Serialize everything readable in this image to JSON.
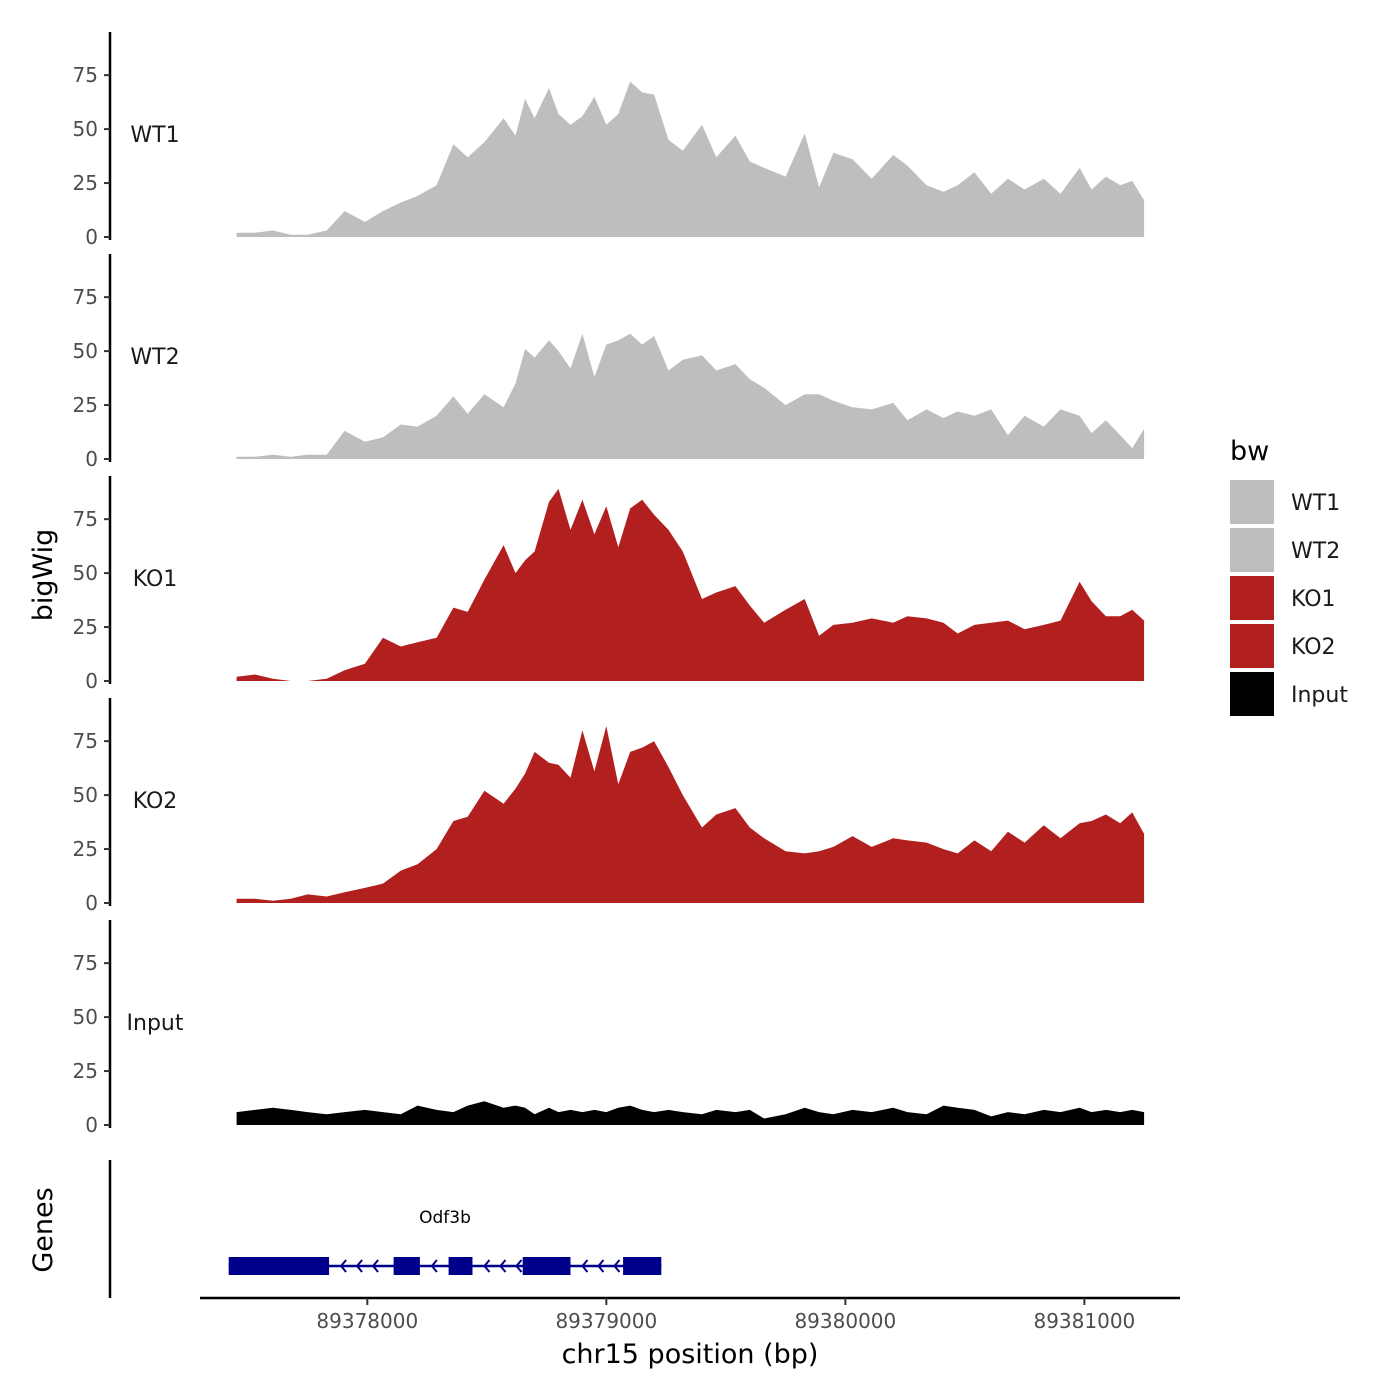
{
  "chart_data": {
    "type": "area",
    "chromosome": "chr15",
    "xlabel": "chr15 position (bp)",
    "ylabel": "bigWig",
    "genes_label": "Genes",
    "xlim": [
      89377300,
      89381400
    ],
    "x_ticks": [
      89378000,
      89379000,
      89380000,
      89381000
    ],
    "x_tick_labels": [
      "89378000",
      "89379000",
      "89380000",
      "89381000"
    ],
    "ylim": [
      0,
      95
    ],
    "y_ticks": [
      0,
      25,
      50,
      75
    ],
    "y_tick_labels": [
      "0",
      "25",
      "50",
      "75"
    ],
    "grid": false,
    "legend": {
      "title": "bw",
      "position": "right",
      "entries": [
        {
          "label": "WT1",
          "color": "#bebebe"
        },
        {
          "label": "WT2",
          "color": "#bebebe"
        },
        {
          "label": "KO1",
          "color": "#b21f1f"
        },
        {
          "label": "KO2",
          "color": "#b21f1f"
        },
        {
          "label": "Input",
          "color": "#000000"
        }
      ]
    },
    "x": [
      89377453,
      89377530,
      89377605,
      89377680,
      89377750,
      89377830,
      89377905,
      89377990,
      89378065,
      89378140,
      89378210,
      89378290,
      89378360,
      89378420,
      89378490,
      89378570,
      89378620,
      89378660,
      89378700,
      89378760,
      89378800,
      89378850,
      89378900,
      89378950,
      89379000,
      89379050,
      89379100,
      89379150,
      89379200,
      89379260,
      89379320,
      89379400,
      89379460,
      89379540,
      89379600,
      89379660,
      89379750,
      89379830,
      89379890,
      89379950,
      89380030,
      89380110,
      89380200,
      89380260,
      89380340,
      89380410,
      89380470,
      89380540,
      89380610,
      89380680,
      89380750,
      89380830,
      89380900,
      89380980,
      89381030,
      89381090,
      89381150,
      89381200,
      89381250
    ],
    "series": [
      {
        "name": "WT1",
        "color": "#bebebe",
        "values": [
          2,
          2,
          3,
          1,
          1,
          3,
          12,
          7,
          12,
          16,
          19,
          24,
          43,
          37,
          44,
          55,
          47,
          64,
          55,
          69,
          57,
          52,
          56,
          65,
          52,
          57,
          72,
          67,
          66,
          45,
          40,
          52,
          37,
          47,
          35,
          32,
          28,
          48,
          23,
          39,
          36,
          27,
          38,
          33,
          24,
          21,
          24,
          30,
          20,
          27,
          22,
          27,
          20,
          32,
          22,
          28,
          24,
          26,
          17
        ]
      },
      {
        "name": "WT2",
        "color": "#bebebe",
        "values": [
          1,
          1,
          2,
          1,
          2,
          2,
          13,
          8,
          10,
          16,
          15,
          20,
          29,
          21,
          30,
          24,
          35,
          51,
          47,
          55,
          50,
          42,
          58,
          38,
          53,
          55,
          58,
          53,
          57,
          41,
          46,
          48,
          41,
          44,
          37,
          33,
          25,
          30,
          30,
          27,
          24,
          23,
          26,
          18,
          23,
          19,
          22,
          20,
          23,
          11,
          20,
          15,
          23,
          20,
          12,
          18,
          11,
          5,
          14
        ]
      },
      {
        "name": "KO1",
        "color": "#b21f1f",
        "values": [
          2,
          3,
          1,
          0,
          0,
          1,
          5,
          8,
          20,
          16,
          18,
          20,
          34,
          32,
          47,
          63,
          50,
          56,
          60,
          83,
          89,
          70,
          84,
          68,
          81,
          62,
          80,
          84,
          77,
          70,
          60,
          38,
          41,
          44,
          35,
          27,
          33,
          38,
          21,
          26,
          27,
          29,
          27,
          30,
          29,
          27,
          22,
          26,
          27,
          28,
          24,
          26,
          28,
          46,
          37,
          30,
          30,
          33,
          28
        ]
      },
      {
        "name": "KO2",
        "color": "#b21f1f",
        "values": [
          2,
          2,
          1,
          2,
          4,
          3,
          5,
          7,
          9,
          15,
          18,
          25,
          38,
          40,
          52,
          46,
          53,
          60,
          70,
          65,
          64,
          58,
          80,
          61,
          82,
          55,
          70,
          72,
          75,
          63,
          50,
          35,
          41,
          44,
          35,
          30,
          24,
          23,
          24,
          26,
          31,
          26,
          30,
          29,
          28,
          25,
          23,
          29,
          24,
          33,
          28,
          36,
          30,
          37,
          38,
          41,
          37,
          42,
          32
        ]
      },
      {
        "name": "Input",
        "color": "#000000",
        "values": [
          6,
          7,
          8,
          7,
          6,
          5,
          6,
          7,
          6,
          5,
          9,
          7,
          6,
          9,
          11,
          8,
          9,
          8,
          5,
          8,
          6,
          7,
          6,
          7,
          6,
          8,
          9,
          7,
          6,
          7,
          6,
          5,
          7,
          6,
          7,
          3,
          5,
          8,
          6,
          5,
          7,
          6,
          8,
          6,
          5,
          9,
          8,
          7,
          4,
          6,
          5,
          7,
          6,
          8,
          6,
          7,
          6,
          7,
          6
        ]
      }
    ],
    "gene_track": {
      "gene_name": "Odf3b",
      "color": "#00008b",
      "strand": "-",
      "start": 89377420,
      "end": 89379230,
      "exons": [
        [
          89377420,
          89377840
        ],
        [
          89378110,
          89378220
        ],
        [
          89378340,
          89378440
        ],
        [
          89378650,
          89378850
        ],
        [
          89379070,
          89379230
        ]
      ]
    }
  }
}
